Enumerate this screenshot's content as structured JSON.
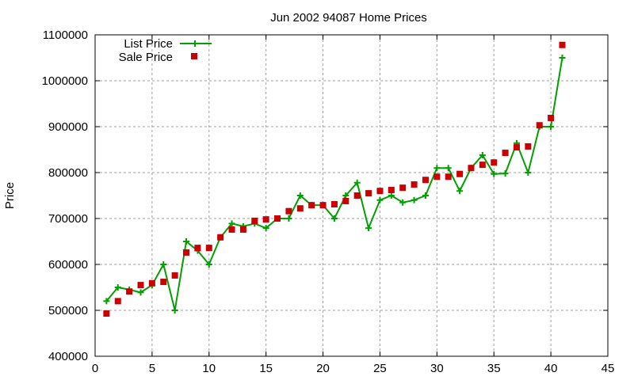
{
  "chart_data": {
    "type": "line",
    "title": "Jun 2002 94087 Home Prices",
    "xlabel": "",
    "ylabel": "Price",
    "xlim": [
      0,
      45
    ],
    "ylim": [
      400000,
      1100000
    ],
    "xticks": [
      0,
      5,
      10,
      15,
      20,
      25,
      30,
      35,
      40,
      45
    ],
    "yticks": [
      400000,
      500000,
      600000,
      700000,
      800000,
      900000,
      1000000,
      1100000
    ],
    "grid": true,
    "legend_position": "top-left",
    "x": [
      1,
      2,
      3,
      4,
      5,
      6,
      7,
      8,
      9,
      10,
      11,
      12,
      13,
      14,
      15,
      16,
      17,
      18,
      19,
      20,
      21,
      22,
      23,
      24,
      25,
      26,
      27,
      28,
      29,
      30,
      31,
      32,
      33,
      34,
      35,
      36,
      37,
      38,
      39,
      40,
      41
    ],
    "series": [
      {
        "name": "List Price",
        "style": "linespoints",
        "color": "#00a000",
        "values": [
          520000,
          550000,
          545000,
          539000,
          555000,
          600000,
          500000,
          650000,
          630000,
          600000,
          659000,
          689000,
          683000,
          689000,
          679000,
          700000,
          700000,
          750000,
          729000,
          729000,
          700000,
          750000,
          778000,
          679000,
          740000,
          750000,
          735000,
          740000,
          750000,
          810000,
          810000,
          760000,
          810000,
          838000,
          797000,
          798000,
          864000,
          800000,
          900000,
          900000,
          1050000
        ]
      },
      {
        "name": "Sale Price",
        "style": "points",
        "color": "#cc0000",
        "values": [
          493000,
          520000,
          541000,
          555000,
          559000,
          562000,
          576000,
          626000,
          636000,
          636000,
          659000,
          676000,
          676000,
          695000,
          698000,
          700000,
          716000,
          722000,
          729000,
          729000,
          731000,
          738000,
          750000,
          755000,
          760000,
          762000,
          767000,
          774000,
          784000,
          791000,
          791000,
          797000,
          810000,
          817000,
          822000,
          843000,
          855000,
          857000,
          903000,
          919000,
          1078000
        ]
      }
    ]
  }
}
